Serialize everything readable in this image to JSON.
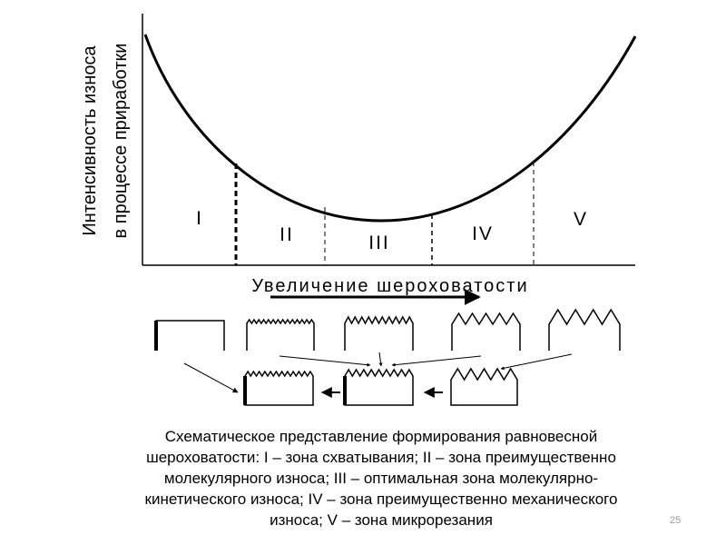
{
  "y_axis_label": [
    "Интенсивность износа",
    "в процессе приработки"
  ],
  "x_axis_label": "Увеличение шероховатости",
  "zones": [
    "I",
    "II",
    "III",
    "IV",
    "V"
  ],
  "caption": [
    "Схематическое представление формирования равновесной",
    "шероховатости: I – зона схватывания; II – зона преимущественно",
    "молекулярного износа; III – оптимальная зона молекулярно-",
    "кинетического износа; IV – зона преимущественно механического",
    "износа; V – зона микрорезания"
  ],
  "slide_number": "25"
}
